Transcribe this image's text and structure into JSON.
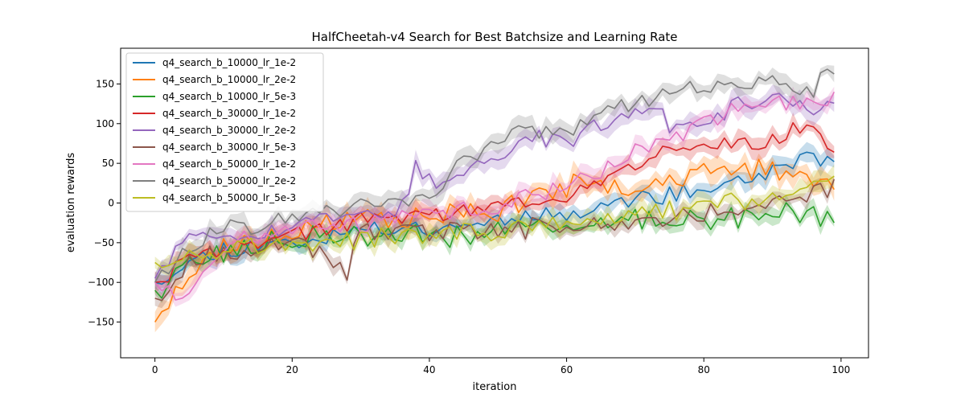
{
  "chart_data": {
    "type": "line",
    "title": "HalfCheetah-v4 Search for Best Batchsize and Learning Rate",
    "xlabel": "iteration",
    "ylabel": "evaluation rewards",
    "xlim": [
      -5,
      104
    ],
    "ylim": [
      -195,
      195
    ],
    "xticks": [
      0,
      20,
      40,
      60,
      80,
      100
    ],
    "yticks": [
      -150,
      -100,
      -50,
      0,
      50,
      100,
      150
    ],
    "legend_position": "upper-left",
    "grid": false,
    "shaded_band": "std",
    "series": [
      {
        "name": "q4_search_b_10000_lr_1e-2",
        "color": "#1f77b4",
        "band": 9,
        "noise": 10,
        "seed": 11,
        "key_x": [
          0,
          5,
          10,
          20,
          30,
          40,
          50,
          60,
          70,
          80,
          90,
          95,
          99
        ],
        "key_y": [
          -100,
          -75,
          -58,
          -48,
          -35,
          -30,
          -22,
          -10,
          5,
          15,
          40,
          60,
          47
        ]
      },
      {
        "name": "q4_search_b_10000_lr_2e-2",
        "color": "#ff7f0e",
        "band": 12,
        "noise": 13,
        "seed": 23,
        "key_x": [
          0,
          2,
          5,
          10,
          20,
          30,
          40,
          50,
          60,
          70,
          80,
          88,
          93,
          99
        ],
        "key_y": [
          -150,
          -128,
          -85,
          -55,
          -35,
          -20,
          -18,
          -10,
          20,
          25,
          35,
          45,
          35,
          25
        ]
      },
      {
        "name": "q4_search_b_10000_lr_5e-3",
        "color": "#2ca02c",
        "band": 8,
        "noise": 14,
        "seed": 37,
        "key_x": [
          0,
          5,
          10,
          20,
          30,
          40,
          50,
          60,
          70,
          80,
          90,
          99
        ],
        "key_y": [
          -110,
          -75,
          -65,
          -45,
          -40,
          -45,
          -35,
          -25,
          -25,
          -20,
          -10,
          -18
        ]
      },
      {
        "name": "q4_search_b_30000_lr_1e-2",
        "color": "#d62728",
        "band": 10,
        "noise": 10,
        "seed": 41,
        "key_x": [
          0,
          5,
          10,
          20,
          30,
          40,
          50,
          60,
          70,
          80,
          86,
          90,
          95,
          99
        ],
        "key_y": [
          -100,
          -70,
          -58,
          -40,
          -20,
          -15,
          -5,
          5,
          50,
          80,
          70,
          80,
          100,
          70
        ]
      },
      {
        "name": "q4_search_b_30000_lr_2e-2",
        "color": "#9467bd",
        "band": 10,
        "noise": 10,
        "seed": 53,
        "key_x": [
          0,
          5,
          10,
          20,
          30,
          36,
          38,
          42,
          48,
          55,
          60,
          65,
          70,
          73,
          75,
          80,
          85,
          90,
          95,
          99
        ],
        "key_y": [
          -95,
          -35,
          -40,
          -30,
          -15,
          -5,
          45,
          20,
          50,
          80,
          80,
          95,
          110,
          130,
          90,
          100,
          125,
          135,
          120,
          123
        ]
      },
      {
        "name": "q4_search_b_30000_lr_5e-3",
        "color": "#8c564b",
        "band": 8,
        "noise": 12,
        "seed": 67,
        "key_x": [
          0,
          5,
          10,
          20,
          28,
          30,
          40,
          50,
          60,
          70,
          80,
          90,
          99
        ],
        "key_y": [
          -120,
          -75,
          -60,
          -45,
          -90,
          -40,
          -35,
          -35,
          -30,
          -25,
          -15,
          -5,
          25
        ]
      },
      {
        "name": "q4_search_b_50000_lr_1e-2",
        "color": "#e377c2",
        "band": 10,
        "noise": 11,
        "seed": 71,
        "key_x": [
          0,
          4,
          10,
          20,
          30,
          40,
          50,
          60,
          65,
          70,
          75,
          80,
          85,
          90,
          95,
          99
        ],
        "key_y": [
          -100,
          -130,
          -50,
          -30,
          -25,
          -15,
          -5,
          20,
          40,
          65,
          80,
          100,
          120,
          130,
          125,
          130
        ]
      },
      {
        "name": "q4_search_b_50000_lr_2e-2",
        "color": "#7f7f7f",
        "band": 10,
        "noise": 11,
        "seed": 83,
        "key_x": [
          0,
          5,
          10,
          20,
          30,
          40,
          45,
          50,
          55,
          60,
          65,
          70,
          75,
          80,
          85,
          90,
          95,
          99
        ],
        "key_y": [
          -100,
          -55,
          -30,
          -20,
          -5,
          10,
          50,
          80,
          95,
          90,
          120,
          125,
          145,
          150,
          150,
          160,
          140,
          165
        ]
      },
      {
        "name": "q4_search_b_50000_lr_5e-3",
        "color": "#bcbd22",
        "band": 10,
        "noise": 11,
        "seed": 97,
        "key_x": [
          0,
          5,
          10,
          20,
          30,
          40,
          50,
          60,
          70,
          80,
          90,
          95,
          99
        ],
        "key_y": [
          -75,
          -65,
          -55,
          -55,
          -45,
          -40,
          -35,
          -25,
          -15,
          -5,
          5,
          20,
          35
        ]
      }
    ]
  }
}
